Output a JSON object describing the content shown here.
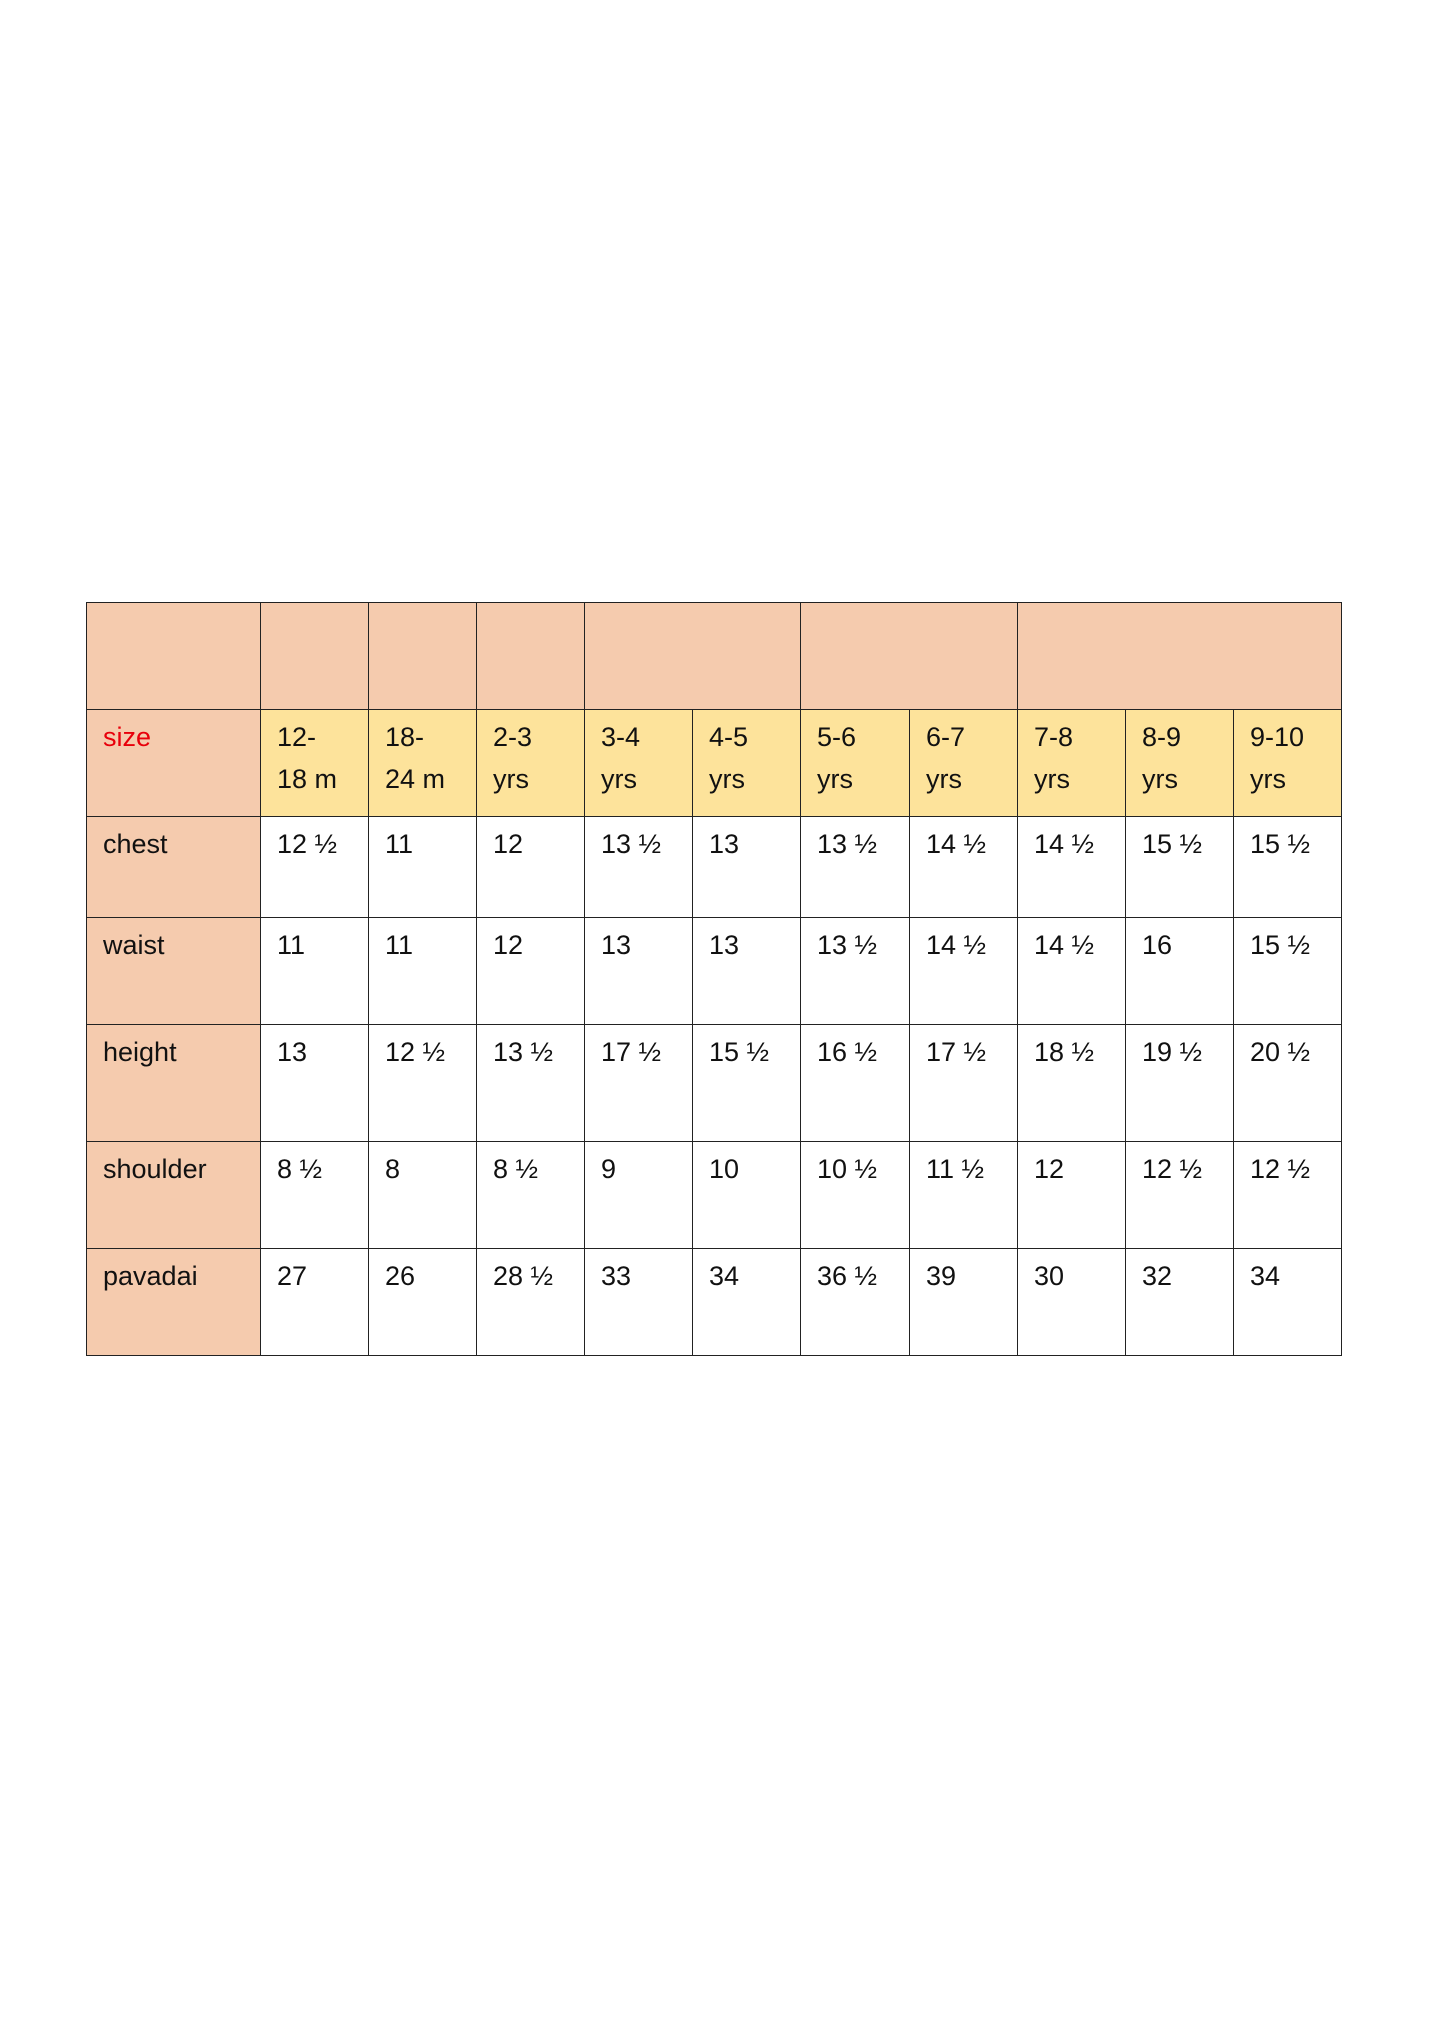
{
  "colors": {
    "header_fill": "#f5cbae",
    "size_row_fill": "#fde39b",
    "size_label": "#e8000b"
  },
  "size_label": "size",
  "sizes": [
    "12-\n18 m",
    "18-\n24 m",
    "2-3\nyrs",
    "3-4\nyrs",
    "4-5\nyrs",
    "5-6\nyrs",
    "6-7\nyrs",
    "7-8\nyrs",
    "8-9\nyrs",
    "9-10\nyrs"
  ],
  "rows": [
    {
      "label": "chest",
      "values": [
        "12 ½",
        "11",
        "12",
        "13 ½",
        "13",
        "13 ½",
        "14 ½",
        "14 ½",
        "15 ½",
        "15 ½"
      ]
    },
    {
      "label": "waist",
      "values": [
        "11",
        "11",
        "12",
        "13",
        "13",
        "13 ½",
        "14 ½",
        "14 ½",
        "16",
        "15 ½"
      ]
    },
    {
      "label": "height",
      "values": [
        "13",
        "12 ½",
        "13 ½",
        "17 ½",
        "15 ½",
        "16 ½",
        "17 ½",
        "18 ½",
        "19 ½",
        "20 ½"
      ]
    },
    {
      "label": "shoulder",
      "values": [
        "8 ½",
        "8",
        "8 ½",
        "9",
        "10",
        "10 ½",
        "11 ½",
        "12",
        "12 ½",
        "12 ½"
      ]
    },
    {
      "label": "pavadai",
      "values": [
        "27",
        "26",
        "28 ½",
        "33",
        "34",
        "36 ½",
        "39",
        "30",
        "32",
        "34"
      ]
    }
  ]
}
